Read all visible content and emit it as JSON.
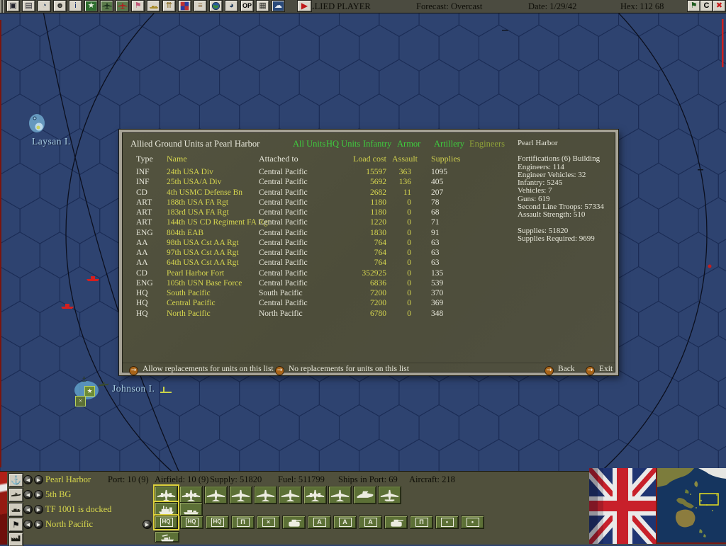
{
  "toolbar": {
    "player": "ALLIED PLAYER",
    "forecast": "Forecast: Overcast",
    "date": "Date: 1/29/42",
    "hex": "Hex: 112 68",
    "buttons": [
      {
        "name": "save-game-icon",
        "icon": "disk"
      },
      {
        "name": "reports-icon",
        "icon": "report"
      },
      {
        "name": "turn-clock-icon",
        "icon": "clock"
      },
      {
        "name": "intel-icon",
        "icon": "face"
      },
      {
        "name": "info-icon",
        "icon": "info"
      },
      {
        "name": "victory-icon",
        "icon": "star"
      },
      {
        "name": "allied-aircraft-icon",
        "icon": "plane-dark"
      },
      {
        "name": "enemy-aircraft-icon",
        "icon": "plane-red"
      },
      {
        "name": "flags-icon",
        "icon": "flag"
      },
      {
        "name": "ship-list-icon",
        "icon": "ship-gold"
      },
      {
        "name": "transfer-icon",
        "icon": "scales"
      },
      {
        "name": "losses-icon",
        "icon": "mosaic"
      },
      {
        "name": "dock-icon",
        "icon": "pier"
      },
      {
        "name": "globe-icon",
        "icon": "globe"
      },
      {
        "name": "time-zone-icon",
        "icon": "globe-clock"
      },
      {
        "name": "operations-icon",
        "icon": "op"
      },
      {
        "name": "preferences-icon",
        "icon": "keys"
      },
      {
        "name": "weather-icon",
        "icon": "cloud"
      },
      {
        "name": "end-turn-icon",
        "icon": "play"
      }
    ],
    "op_label": "OP",
    "right_buttons": [
      {
        "name": "flag-report-icon",
        "icon": "flag-green"
      },
      {
        "name": "combat-icon",
        "icon": "c-label",
        "label": "C"
      },
      {
        "name": "close-icon",
        "icon": "red-x"
      }
    ]
  },
  "map": {
    "labels": [
      {
        "text": "Laysan I."
      },
      {
        "text": "Johnson I."
      }
    ]
  },
  "dialog": {
    "title": "Allied Ground Units at Pearl Harbor",
    "filters": [
      {
        "label": "All Units"
      },
      {
        "label": "HQ Units"
      },
      {
        "label": "Infantry"
      },
      {
        "label": "Armor"
      },
      {
        "label": "Artillery"
      },
      {
        "label": "Engineers",
        "dim": true
      }
    ],
    "columns": [
      "Type",
      "Name",
      "Attached to",
      "Load cost",
      "Assault",
      "Supplies"
    ],
    "rows": [
      {
        "type": "INF",
        "name": "24th USA Div",
        "attached": "Central Pacific",
        "load": "15597",
        "assault": "363",
        "supplies": "1095"
      },
      {
        "type": "INF",
        "name": "25th USA/A Div",
        "attached": "Central Pacific",
        "load": "5692",
        "assault": "136",
        "supplies": "405"
      },
      {
        "type": "CD",
        "name": "4th USMC Defense Bn",
        "attached": "Central Pacific",
        "load": "2682",
        "assault": "11",
        "supplies": "207"
      },
      {
        "type": "ART",
        "name": "188th USA FA Rgt",
        "attached": "Central Pacific",
        "load": "1180",
        "assault": "0",
        "supplies": "78"
      },
      {
        "type": "ART",
        "name": "183rd USA FA Rgt",
        "attached": "Central Pacific",
        "load": "1180",
        "assault": "0",
        "supplies": "68"
      },
      {
        "type": "ART",
        "name": "144th US CD Regiment FA Rgt",
        "attached": "Central Pacific",
        "load": "1220",
        "assault": "0",
        "supplies": "71"
      },
      {
        "type": "ENG",
        "name": "804th EAB",
        "attached": "Central Pacific",
        "load": "1830",
        "assault": "0",
        "supplies": "91"
      },
      {
        "type": "AA",
        "name": "98th USA Cst AA Rgt",
        "attached": "Central Pacific",
        "load": "764",
        "assault": "0",
        "supplies": "63"
      },
      {
        "type": "AA",
        "name": "97th USA Cst AA Rgt",
        "attached": "Central Pacific",
        "load": "764",
        "assault": "0",
        "supplies": "63"
      },
      {
        "type": "AA",
        "name": "64th USA Cst AA Rgt",
        "attached": "Central Pacific",
        "load": "764",
        "assault": "0",
        "supplies": "63"
      },
      {
        "type": "CD",
        "name": "Pearl Harbor Fort",
        "attached": "Central Pacific",
        "load": "352925",
        "assault": "0",
        "supplies": "135"
      },
      {
        "type": "ENG",
        "name": "105th USN Base Force",
        "attached": "Central Pacific",
        "load": "6836",
        "assault": "0",
        "supplies": "539"
      },
      {
        "type": "HQ",
        "name": "South Pacific",
        "attached": "South Pacific",
        "load": "7200",
        "assault": "0",
        "supplies": "370"
      },
      {
        "type": "HQ",
        "name": "Central Pacific",
        "attached": "Central Pacific",
        "load": "7200",
        "assault": "0",
        "supplies": "369"
      },
      {
        "type": "HQ",
        "name": "North Pacific",
        "attached": "North Pacific",
        "load": "6780",
        "assault": "0",
        "supplies": "348"
      }
    ],
    "info": {
      "title": "Pearl Harbor",
      "lines": [
        "Fortifications (6) Building",
        "Engineers: 114",
        "Engineer Vehicles: 32",
        "Infantry: 5245",
        "Vehicles: 7",
        "Guns: 619",
        "Second Line Troops: 57334",
        "Assault Strength: 510",
        "",
        "Supplies: 51820",
        "Supplies Required: 9699"
      ]
    },
    "actions": {
      "allow": "Allow replacements for units on this list",
      "deny": "No replacements for units on this list",
      "back": "Back",
      "exit": "Exit"
    }
  },
  "bottom": {
    "rows": [
      {
        "icon": "anchor",
        "label": "Pearl Harbor"
      },
      {
        "icon": "plane-side",
        "label": "5th BG"
      },
      {
        "icon": "ship-side",
        "label": "TF 1001 is docked"
      },
      {
        "icon": "flag-dark",
        "label": "North Pacific"
      }
    ],
    "factory_icon": "factory",
    "stats": [
      {
        "text": "Port: 10 (9)"
      },
      {
        "text": "Airfield: 10 (9)"
      },
      {
        "text": "Supply: 51820"
      },
      {
        "text": "Fuel: 511799"
      },
      {
        "text": "Ships in Port: 69"
      },
      {
        "text": "Aircraft: 218"
      }
    ],
    "aircraft_buttons": [
      "bomber",
      "bomber",
      "fighter",
      "fighter",
      "fighter",
      "fighter",
      "bomber",
      "fighter",
      "patrol-seaplane",
      "floatplane"
    ],
    "ship_buttons": [
      "capital-ship",
      "escort-ship"
    ],
    "ground_buttons": [
      "hq",
      "hq",
      "hq",
      "fort",
      "infantry",
      "armor",
      "aa",
      "aa",
      "aa",
      "armor",
      "fort",
      "artillery",
      "artillery"
    ],
    "repair_button": "repair-ship"
  },
  "colors": {
    "map_blue": "#2e4370",
    "hex_line": "#1b2c55",
    "panel_olive": "#50503c",
    "unit_green": "#5c7036",
    "text_yellow": "#d8d84c",
    "text_green": "#3ece3e",
    "text_white": "#e9e9dc",
    "highlight_yellow": "#ddd23c",
    "enemy_red": "#d41f1f"
  }
}
